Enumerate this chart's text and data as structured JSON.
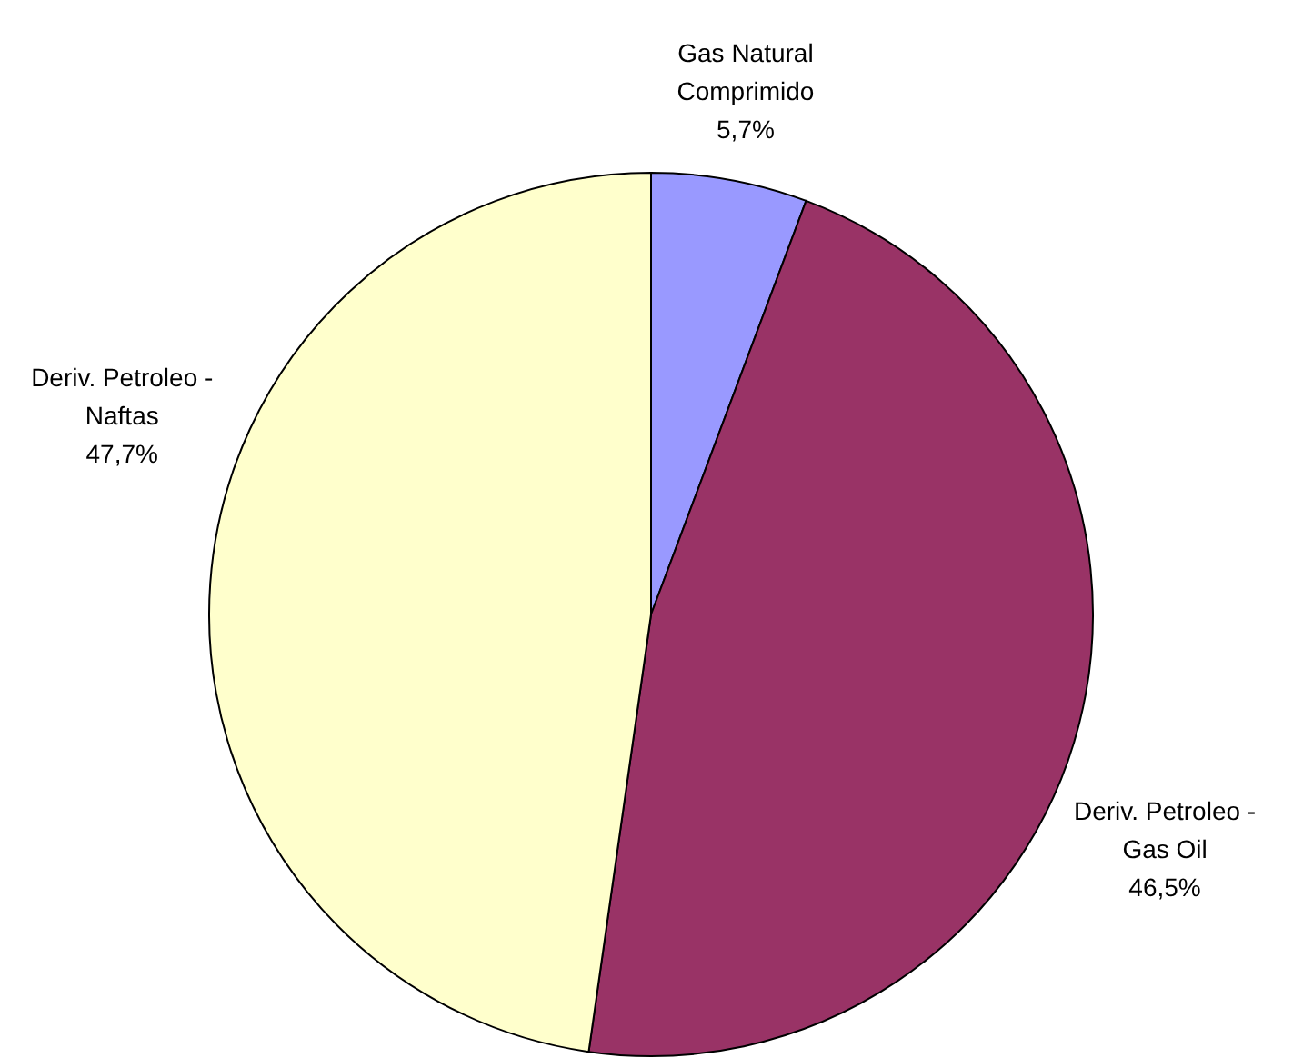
{
  "chart_data": {
    "type": "pie",
    "categories": [
      "Gas Natural Comprimido",
      "Deriv. Petroleo - Gas Oil",
      "Deriv. Petroleo - Naftas"
    ],
    "values": [
      5.7,
      46.5,
      47.7
    ],
    "value_labels": [
      "5,7%",
      "46,5%",
      "47,7%"
    ],
    "colors": [
      "#9999ff",
      "#993366",
      "#ffffcc"
    ]
  }
}
